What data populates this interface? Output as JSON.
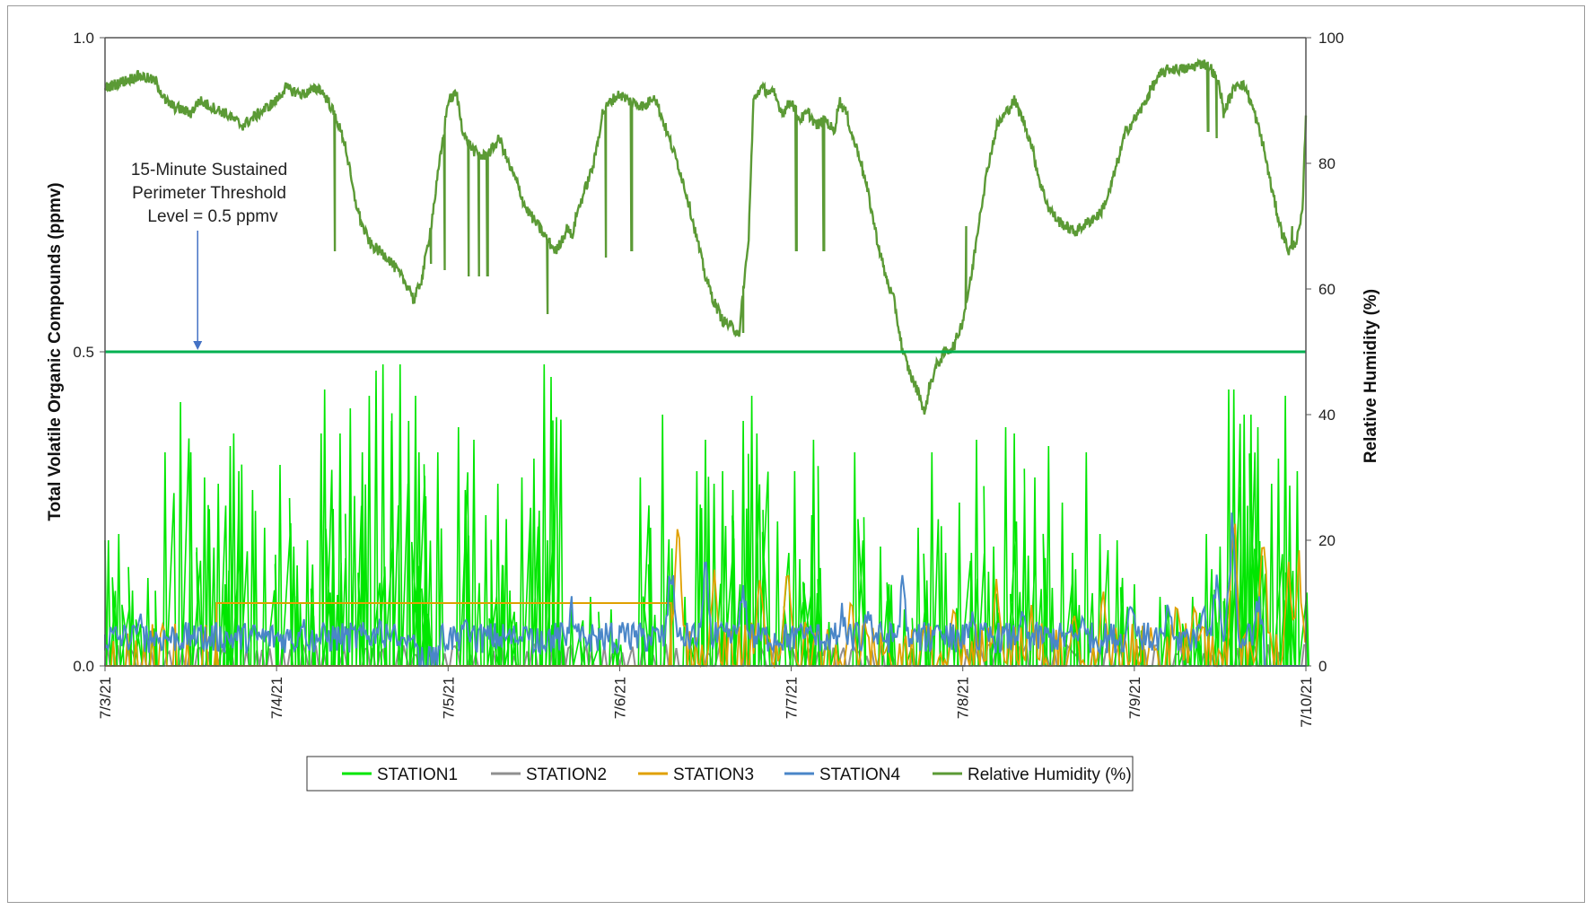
{
  "chart_data": {
    "type": "line",
    "title": "",
    "xlabel": "",
    "ylabel": "Total Volatile Organic Compounds (ppmv)",
    "y2label": "Relative Humidity (%)",
    "x_ticks": [
      "7/3/21",
      "7/4/21",
      "7/5/21",
      "7/6/21",
      "7/7/21",
      "7/8/21",
      "7/9/21",
      "7/10/21"
    ],
    "y_ticks": [
      "0.0",
      "0.5",
      "1.0"
    ],
    "y2_ticks": [
      "0",
      "20",
      "40",
      "60",
      "80",
      "100"
    ],
    "ylim": [
      0,
      1.0
    ],
    "y2lim": [
      0,
      100
    ],
    "xlim_days": [
      0,
      7
    ],
    "grid": false,
    "legend_position": "bottom",
    "annotation": {
      "lines": [
        "15-Minute Sustained",
        "Perimeter Threshold",
        "Level = 0.5 ppmv"
      ],
      "arrow_x_day": 0.54,
      "target_y": 0.5
    },
    "threshold": {
      "value": 0.5,
      "color": "#00b050"
    },
    "series": [
      {
        "name": "STATION1",
        "axis": "left",
        "color": "#00e600",
        "peaks": [
          [
            0.02,
            0.2
          ],
          [
            0.08,
            0.21
          ],
          [
            0.16,
            0.12
          ],
          [
            0.25,
            0.14
          ],
          [
            0.35,
            0.34
          ],
          [
            0.44,
            0.42
          ],
          [
            0.5,
            0.34
          ],
          [
            0.58,
            0.3
          ],
          [
            0.66,
            0.29
          ],
          [
            0.7,
            0.13
          ],
          [
            0.73,
            0.35
          ],
          [
            0.75,
            0.37
          ],
          [
            0.78,
            0.31
          ],
          [
            0.86,
            0.28
          ],
          [
            0.93,
            0.22
          ],
          [
            1.02,
            0.32
          ],
          [
            1.1,
            0.19
          ],
          [
            1.12,
            0.16
          ],
          [
            1.18,
            0.2
          ],
          [
            1.26,
            0.37
          ],
          [
            1.28,
            0.44
          ],
          [
            1.33,
            0.25
          ],
          [
            1.37,
            0.37
          ],
          [
            1.43,
            0.41
          ],
          [
            1.5,
            0.34
          ],
          [
            1.54,
            0.43
          ],
          [
            1.58,
            0.47
          ],
          [
            1.62,
            0.48
          ],
          [
            1.67,
            0.39
          ],
          [
            1.72,
            0.48
          ],
          [
            1.77,
            0.39
          ],
          [
            1.81,
            0.43
          ],
          [
            1.83,
            0.34
          ],
          [
            1.87,
            0.27
          ],
          [
            1.94,
            0.34
          ],
          [
            2.06,
            0.38
          ],
          [
            2.1,
            0.28
          ],
          [
            2.15,
            0.36
          ],
          [
            2.22,
            0.24
          ],
          [
            2.29,
            0.29
          ],
          [
            2.32,
            0.16
          ],
          [
            2.36,
            0.12
          ],
          [
            2.43,
            0.3
          ],
          [
            2.48,
            0.25
          ],
          [
            2.5,
            0.33
          ],
          [
            2.56,
            0.48
          ],
          [
            2.58,
            0.2
          ],
          [
            2.6,
            0.46
          ],
          [
            2.64,
            0.13
          ],
          [
            2.72,
            0.09
          ],
          [
            2.83,
            0.11
          ],
          [
            2.95,
            0.09
          ],
          [
            3.12,
            0.3
          ],
          [
            3.18,
            0.22
          ],
          [
            3.25,
            0.4
          ],
          [
            3.38,
            0.11
          ],
          [
            3.45,
            0.31
          ],
          [
            3.5,
            0.36
          ],
          [
            3.55,
            0.29
          ],
          [
            3.6,
            0.31
          ],
          [
            3.66,
            0.28
          ],
          [
            3.72,
            0.39
          ],
          [
            3.77,
            0.43
          ],
          [
            3.8,
            0.37
          ],
          [
            3.92,
            0.23
          ],
          [
            4.02,
            0.31
          ],
          [
            4.05,
            0.17
          ],
          [
            4.12,
            0.24
          ],
          [
            4.13,
            0.36
          ],
          [
            4.22,
            0.07
          ],
          [
            4.37,
            0.34
          ],
          [
            4.52,
            0.19
          ],
          [
            4.57,
            0.13
          ],
          [
            4.66,
            0.09
          ],
          [
            4.74,
            0.22
          ],
          [
            4.82,
            0.34
          ],
          [
            4.9,
            0.18
          ],
          [
            4.98,
            0.26
          ],
          [
            5.05,
            0.18
          ],
          [
            5.08,
            0.36
          ],
          [
            5.15,
            0.15
          ],
          [
            5.18,
            0.19
          ],
          [
            5.25,
            0.38
          ],
          [
            5.3,
            0.37
          ],
          [
            5.36,
            0.28
          ],
          [
            5.42,
            0.3
          ],
          [
            5.5,
            0.35
          ],
          [
            5.58,
            0.26
          ],
          [
            5.64,
            0.18
          ],
          [
            5.72,
            0.34
          ],
          [
            5.8,
            0.21
          ],
          [
            5.9,
            0.2
          ],
          [
            6.0,
            0.13
          ],
          [
            6.15,
            0.11
          ],
          [
            6.25,
            0.09
          ],
          [
            6.34,
            0.11
          ],
          [
            6.42,
            0.21
          ],
          [
            6.5,
            0.19
          ],
          [
            6.55,
            0.44
          ],
          [
            6.58,
            0.44
          ],
          [
            6.62,
            0.2
          ],
          [
            6.64,
            0.4
          ],
          [
            6.68,
            0.4
          ],
          [
            6.72,
            0.38
          ],
          [
            6.8,
            0.29
          ],
          [
            6.84,
            0.33
          ],
          [
            6.88,
            0.43
          ],
          [
            6.95,
            0.31
          ]
        ]
      },
      {
        "name": "STATION2",
        "axis": "left",
        "color": "#8f8f8f",
        "level": 0.015
      },
      {
        "name": "STATION3",
        "axis": "left",
        "color": "#e0a000",
        "steps": [
          [
            0.65,
            0.0
          ],
          [
            0.65,
            0.1
          ],
          [
            3.3,
            0.1
          ],
          [
            3.3,
            0.0
          ]
        ],
        "peaks": [
          [
            3.34,
            0.34
          ],
          [
            3.55,
            0.2
          ],
          [
            3.82,
            0.19
          ],
          [
            3.98,
            0.22
          ],
          [
            4.35,
            0.12
          ],
          [
            4.78,
            0.09
          ],
          [
            4.95,
            0.12
          ],
          [
            5.2,
            0.16
          ],
          [
            5.4,
            0.1
          ],
          [
            5.65,
            0.1
          ],
          [
            5.82,
            0.14
          ],
          [
            6.25,
            0.13
          ],
          [
            6.35,
            0.12
          ],
          [
            6.58,
            0.32
          ],
          [
            6.75,
            0.28
          ],
          [
            6.9,
            0.19
          ],
          [
            6.96,
            0.2
          ]
        ]
      },
      {
        "name": "STATION4",
        "axis": "left",
        "color": "#4a86c8",
        "peaks": [
          [
            0.2,
            0.1
          ],
          [
            0.55,
            0.07
          ],
          [
            1.15,
            0.1
          ],
          [
            1.6,
            0.09
          ],
          [
            2.1,
            0.09
          ],
          [
            2.45,
            0.08
          ],
          [
            2.72,
            0.12
          ],
          [
            3.02,
            0.07
          ],
          [
            3.3,
            0.19
          ],
          [
            3.5,
            0.18
          ],
          [
            3.72,
            0.17
          ],
          [
            4.05,
            0.09
          ],
          [
            4.3,
            0.11
          ],
          [
            4.45,
            0.13
          ],
          [
            4.65,
            0.16
          ],
          [
            4.85,
            0.1
          ],
          [
            5.05,
            0.1
          ],
          [
            5.35,
            0.1
          ],
          [
            5.7,
            0.1
          ],
          [
            5.98,
            0.16
          ],
          [
            6.2,
            0.12
          ],
          [
            6.4,
            0.14
          ],
          [
            6.48,
            0.18
          ],
          [
            6.57,
            0.26
          ],
          [
            6.72,
            0.14
          ]
        ]
      },
      {
        "name": "Relative Humidity (%)",
        "axis": "right",
        "color": "#5b9a35",
        "points": [
          [
            0,
            92
          ],
          [
            0.1,
            93
          ],
          [
            0.2,
            94
          ],
          [
            0.3,
            93
          ],
          [
            0.35,
            90
          ],
          [
            0.4,
            89
          ],
          [
            0.5,
            88
          ],
          [
            0.55,
            90
          ],
          [
            0.62,
            89
          ],
          [
            0.7,
            88
          ],
          [
            0.75,
            87
          ],
          [
            0.8,
            86
          ],
          [
            0.9,
            88
          ],
          [
            1.0,
            90
          ],
          [
            1.05,
            92
          ],
          [
            1.15,
            91
          ],
          [
            1.25,
            92
          ],
          [
            1.3,
            90
          ],
          [
            1.35,
            87
          ],
          [
            1.4,
            83
          ],
          [
            1.45,
            75
          ],
          [
            1.5,
            70
          ],
          [
            1.55,
            67
          ],
          [
            1.6,
            66
          ],
          [
            1.65,
            65
          ],
          [
            1.7,
            63
          ],
          [
            1.75,
            61
          ],
          [
            1.78,
            60
          ],
          [
            1.8,
            58
          ],
          [
            1.85,
            62
          ],
          [
            1.9,
            70
          ],
          [
            1.95,
            80
          ],
          [
            2.0,
            90
          ],
          [
            2.05,
            91
          ],
          [
            2.08,
            86
          ],
          [
            2.1,
            84
          ],
          [
            2.15,
            82
          ],
          [
            2.2,
            81
          ],
          [
            2.25,
            82
          ],
          [
            2.3,
            84
          ],
          [
            2.35,
            80
          ],
          [
            2.4,
            77
          ],
          [
            2.45,
            73
          ],
          [
            2.5,
            71
          ],
          [
            2.55,
            69
          ],
          [
            2.6,
            67
          ],
          [
            2.63,
            66
          ],
          [
            2.7,
            70
          ],
          [
            2.72,
            68
          ],
          [
            2.75,
            72
          ],
          [
            2.8,
            76
          ],
          [
            2.85,
            80
          ],
          [
            2.9,
            88
          ],
          [
            2.95,
            90
          ],
          [
            3.0,
            91
          ],
          [
            3.05,
            90
          ],
          [
            3.15,
            89
          ],
          [
            3.2,
            91
          ],
          [
            3.25,
            87
          ],
          [
            3.3,
            83
          ],
          [
            3.35,
            79
          ],
          [
            3.4,
            74
          ],
          [
            3.45,
            68
          ],
          [
            3.5,
            62
          ],
          [
            3.55,
            58
          ],
          [
            3.6,
            55
          ],
          [
            3.65,
            54
          ],
          [
            3.7,
            53
          ],
          [
            3.72,
            60
          ],
          [
            3.75,
            67
          ],
          [
            3.78,
            90
          ],
          [
            3.82,
            92
          ],
          [
            3.9,
            91
          ],
          [
            3.95,
            88
          ],
          [
            4.0,
            90
          ],
          [
            4.05,
            87
          ],
          [
            4.1,
            88
          ],
          [
            4.15,
            86
          ],
          [
            4.2,
            87
          ],
          [
            4.25,
            85
          ],
          [
            4.28,
            90
          ],
          [
            4.32,
            88
          ],
          [
            4.36,
            84
          ],
          [
            4.4,
            81
          ],
          [
            4.45,
            75
          ],
          [
            4.5,
            68
          ],
          [
            4.55,
            62
          ],
          [
            4.6,
            58
          ],
          [
            4.65,
            50
          ],
          [
            4.7,
            46
          ],
          [
            4.75,
            43
          ],
          [
            4.78,
            40
          ],
          [
            4.8,
            44
          ],
          [
            4.85,
            48
          ],
          [
            4.9,
            50
          ],
          [
            4.95,
            51
          ],
          [
            5.0,
            55
          ],
          [
            5.05,
            62
          ],
          [
            5.1,
            72
          ],
          [
            5.15,
            80
          ],
          [
            5.2,
            86
          ],
          [
            5.25,
            88
          ],
          [
            5.3,
            90
          ],
          [
            5.35,
            87
          ],
          [
            5.4,
            83
          ],
          [
            5.45,
            77
          ],
          [
            5.5,
            73
          ],
          [
            5.55,
            71
          ],
          [
            5.6,
            70
          ],
          [
            5.65,
            69
          ],
          [
            5.7,
            70
          ],
          [
            5.75,
            71
          ],
          [
            5.8,
            72
          ],
          [
            5.85,
            75
          ],
          [
            5.9,
            80
          ],
          [
            5.95,
            85
          ],
          [
            6.0,
            87
          ],
          [
            6.05,
            89
          ],
          [
            6.1,
            92
          ],
          [
            6.15,
            94
          ],
          [
            6.2,
            95
          ],
          [
            6.3,
            95
          ],
          [
            6.4,
            96
          ],
          [
            6.45,
            95
          ],
          [
            6.5,
            92
          ],
          [
            6.52,
            88
          ],
          [
            6.55,
            90
          ],
          [
            6.6,
            93
          ],
          [
            6.65,
            92
          ],
          [
            6.7,
            88
          ],
          [
            6.75,
            83
          ],
          [
            6.8,
            76
          ],
          [
            6.85,
            70
          ],
          [
            6.9,
            66
          ],
          [
            6.95,
            68
          ],
          [
            6.98,
            72
          ],
          [
            7.0,
            88
          ]
        ],
        "drops": [
          [
            1.34,
            66
          ],
          [
            1.9,
            64
          ],
          [
            1.98,
            63
          ],
          [
            2.12,
            62
          ],
          [
            2.18,
            62
          ],
          [
            2.23,
            62
          ],
          [
            2.58,
            56
          ],
          [
            2.75,
            72
          ],
          [
            2.88,
            84
          ],
          [
            2.92,
            65
          ],
          [
            3.07,
            66
          ],
          [
            3.72,
            53
          ],
          [
            4.03,
            66
          ],
          [
            4.19,
            66
          ],
          [
            4.96,
            52
          ],
          [
            5.02,
            70
          ],
          [
            6.43,
            85
          ],
          [
            6.48,
            84
          ],
          [
            6.92,
            70
          ]
        ]
      }
    ]
  }
}
